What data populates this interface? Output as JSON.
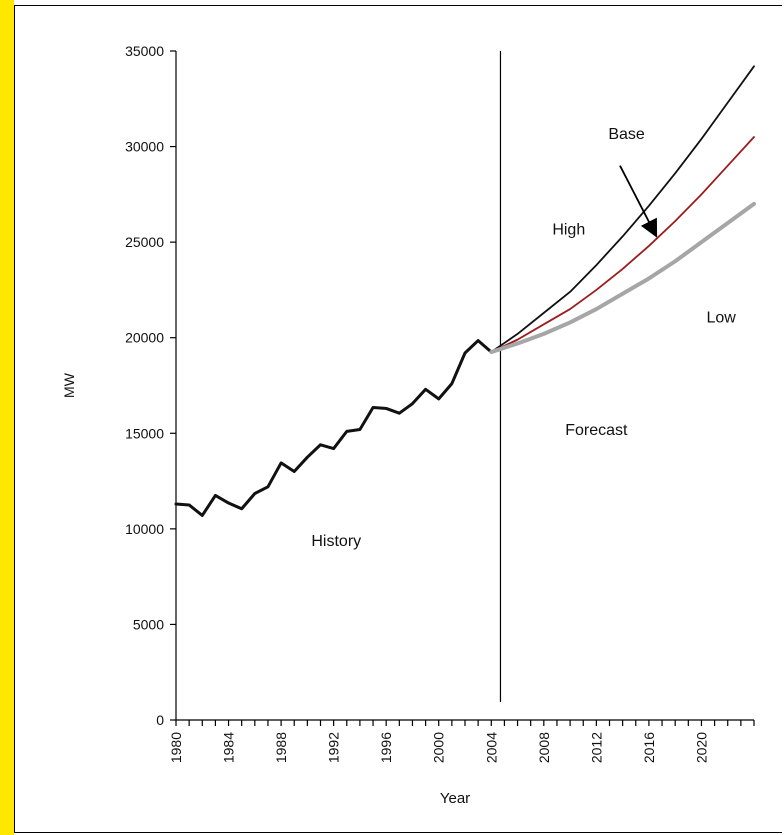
{
  "page": {
    "left_strip_color": "#ffe800"
  },
  "chart_data": {
    "type": "line",
    "xlabel": "Year",
    "ylabel": "MW",
    "xlim": [
      1980,
      2024
    ],
    "ylim": [
      0,
      35000
    ],
    "x_ticks": [
      "1980",
      "1984",
      "1988",
      "1992",
      "1996",
      "2000",
      "2004",
      "2008",
      "2012",
      "2016",
      "2020"
    ],
    "y_ticks": [
      "0",
      "5000",
      "10000",
      "15000",
      "20000",
      "25000",
      "30000",
      "35000"
    ],
    "divider_year": 2004.7,
    "series": [
      {
        "name": "History",
        "color": "#111111",
        "width": 3,
        "x": [
          1980,
          1981,
          1982,
          1983,
          1984,
          1985,
          1986,
          1987,
          1988,
          1989,
          1990,
          1991,
          1992,
          1993,
          1994,
          1995,
          1996,
          1997,
          1998,
          1999,
          2000,
          2001,
          2002,
          2003,
          2004
        ],
        "y": [
          11300,
          11250,
          10700,
          11750,
          11350,
          11050,
          11850,
          12200,
          13450,
          13000,
          13750,
          14400,
          14200,
          15100,
          15200,
          16350,
          16300,
          16050,
          16550,
          17300,
          16800,
          17600,
          19200,
          19850,
          19250
        ]
      },
      {
        "name": "High",
        "color": "#111111",
        "width": 1.8,
        "x": [
          2004,
          2006,
          2008,
          2010,
          2012,
          2014,
          2016,
          2018,
          2020,
          2022,
          2024
        ],
        "y": [
          19250,
          20200,
          21300,
          22400,
          23800,
          25300,
          26900,
          28600,
          30400,
          32300,
          34200
        ]
      },
      {
        "name": "Base",
        "color": "#9b1c1c",
        "width": 1.8,
        "x": [
          2004,
          2006,
          2008,
          2010,
          2012,
          2014,
          2016,
          2018,
          2020,
          2022,
          2024
        ],
        "y": [
          19250,
          19900,
          20700,
          21500,
          22500,
          23600,
          24800,
          26100,
          27500,
          29000,
          30500
        ]
      },
      {
        "name": "Low",
        "color": "#a6a6a6",
        "width": 4,
        "x": [
          2004,
          2006,
          2008,
          2010,
          2012,
          2014,
          2016,
          2018,
          2020,
          2022,
          2024
        ],
        "y": [
          19250,
          19700,
          20200,
          20800,
          21500,
          22300,
          23100,
          24000,
          25000,
          26000,
          27000
        ]
      }
    ],
    "annotations": [
      {
        "text": "Base",
        "x": 2014.3,
        "y": 30400
      },
      {
        "text": "High",
        "x": 2009.9,
        "y": 25400
      },
      {
        "text": "Low",
        "x": 2021.5,
        "y": 20800
      },
      {
        "text": "Forecast",
        "x": 2012.0,
        "y": 14900
      },
      {
        "text": "History",
        "x": 1992.2,
        "y": 9100
      }
    ],
    "arrow": {
      "from": [
        2013.8,
        29000
      ],
      "to": [
        2016.5,
        25400
      ]
    }
  }
}
